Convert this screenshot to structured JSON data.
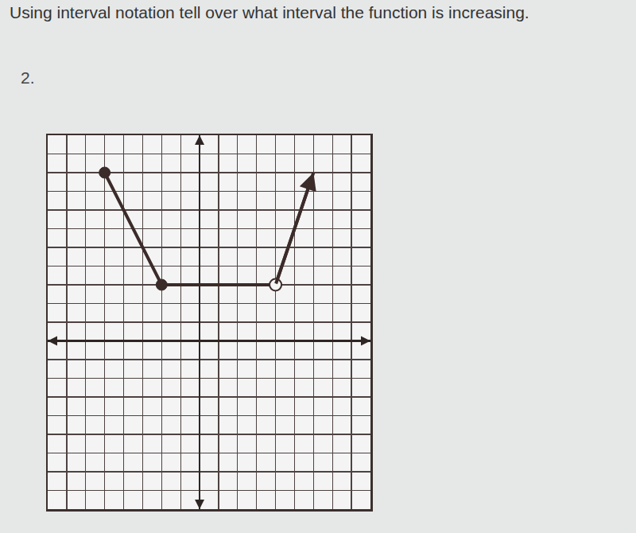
{
  "header": {
    "question": "Using interval notation tell over what interval the function is increasing.",
    "number": "2."
  },
  "chart_data": {
    "type": "line",
    "xlim": [
      -8,
      9
    ],
    "ylim": [
      -9,
      11
    ],
    "xticks": [
      -8,
      -7,
      -6,
      -5,
      -4,
      -3,
      -2,
      -1,
      0,
      1,
      2,
      3,
      4,
      5,
      6,
      7,
      8,
      9
    ],
    "yticks": [
      -9,
      -8,
      -7,
      -6,
      -5,
      -4,
      -3,
      -2,
      -1,
      0,
      1,
      2,
      3,
      4,
      5,
      6,
      7,
      8,
      9,
      10,
      11
    ],
    "grid": true,
    "tick_labels": false,
    "series": [
      {
        "type": "line",
        "x": [
          -5,
          -2,
          4,
          6
        ],
        "values": [
          9,
          3,
          3,
          9
        ],
        "color": "#3b2b29",
        "line_style": "solid",
        "marker": "arrow"
      },
      {
        "type": "scatter",
        "x": [
          -5,
          -2
        ],
        "values": [
          9,
          3
        ],
        "color": "#3b2b29",
        "marker": "closed"
      },
      {
        "type": "scatter",
        "x": [
          4
        ],
        "values": [
          3
        ],
        "color": "#3b2b29",
        "marker": "open"
      }
    ]
  }
}
